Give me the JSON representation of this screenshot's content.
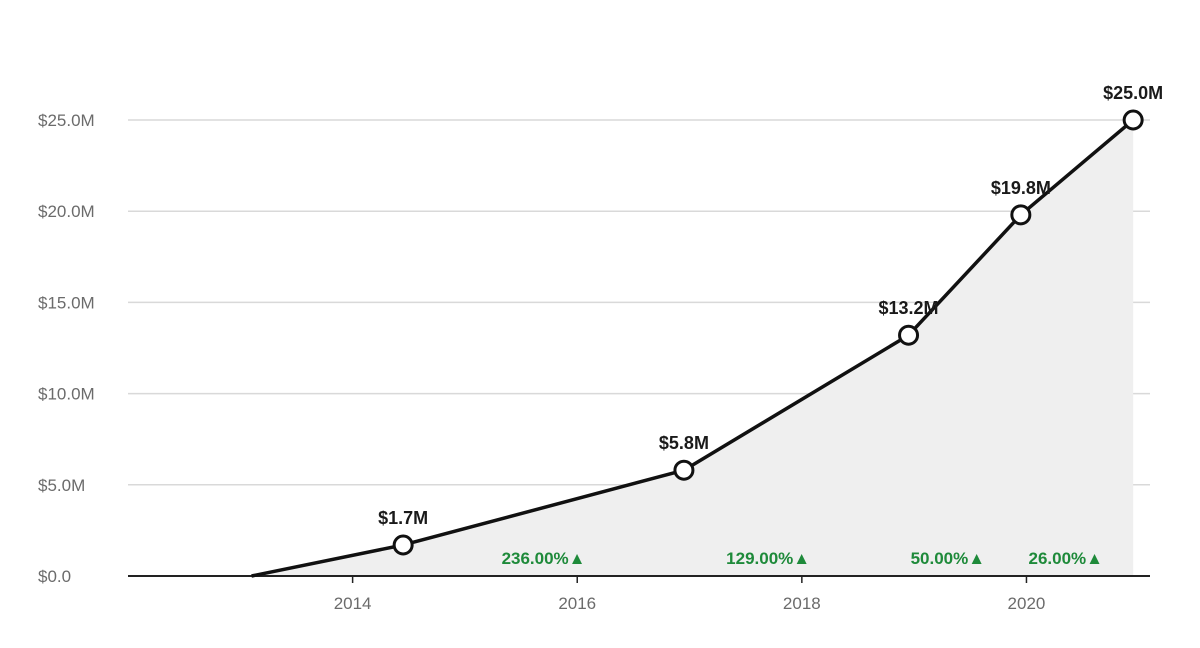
{
  "chart_data": {
    "type": "area",
    "x": [
      2013.1,
      2014.45,
      2016.95,
      2018.95,
      2019.95,
      2020.95
    ],
    "values": [
      0.0,
      1.7,
      5.8,
      13.2,
      19.8,
      25.0
    ],
    "point_labels": [
      "",
      "$1.7M",
      "$5.8M",
      "$13.2M",
      "$19.8M",
      "$25.0M"
    ],
    "xlim": [
      2012.0,
      2021.1
    ],
    "ylim": [
      0,
      25
    ],
    "x_ticks": [
      2014,
      2016,
      2018,
      2020
    ],
    "x_tick_labels": [
      "2014",
      "2016",
      "2018",
      "2020"
    ],
    "y_ticks": [
      0,
      5,
      10,
      15,
      20,
      25
    ],
    "y_tick_labels": [
      "$0.0",
      "$5.0M",
      "$10.0M",
      "$15.0M",
      "$20.0M",
      "$25.0M"
    ],
    "growth_annotations": [
      {
        "text": "236.00%▲",
        "x": 2015.7
      },
      {
        "text": "129.00%▲",
        "x": 2017.7
      },
      {
        "text": "50.00%▲",
        "x": 2019.3
      },
      {
        "text": "26.00%▲",
        "x": 2020.35
      }
    ],
    "grid": true,
    "colors": {
      "line": "#111111",
      "area": "#efefef",
      "growth": "#1e8a3a"
    }
  }
}
